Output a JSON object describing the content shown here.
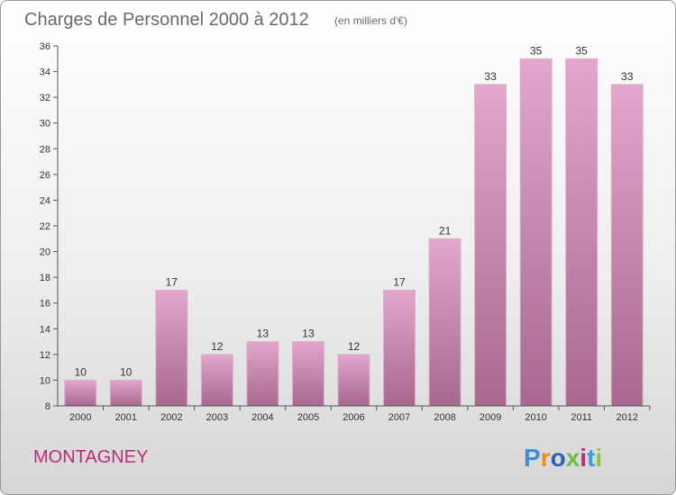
{
  "chart_data": {
    "type": "bar",
    "title": "Charges de Personnel 2000 à 2012",
    "subtitle": "(en milliers d'€)",
    "categories": [
      "2000",
      "2001",
      "2002",
      "2003",
      "2004",
      "2005",
      "2006",
      "2007",
      "2008",
      "2009",
      "2010",
      "2011",
      "2012"
    ],
    "values": [
      10,
      10,
      17,
      12,
      13,
      13,
      12,
      17,
      21,
      33,
      35,
      35,
      33
    ],
    "ylim": [
      8,
      36
    ],
    "yticks": [
      8,
      10,
      12,
      14,
      16,
      18,
      20,
      22,
      24,
      26,
      28,
      30,
      32,
      34,
      36
    ],
    "grid": false,
    "bar_color_top": "#e3a6cd",
    "bar_color_bottom": "#a8688f",
    "axis_color": "#555555"
  },
  "footer": {
    "place": "MONTAGNEY",
    "logo": "Proxiti",
    "logo_colors": [
      "#3f8fd6",
      "#f08a1c",
      "#2a63b8",
      "#6fbe44",
      "#c2297a",
      "#3aa0d8",
      "#8bc53f"
    ]
  }
}
